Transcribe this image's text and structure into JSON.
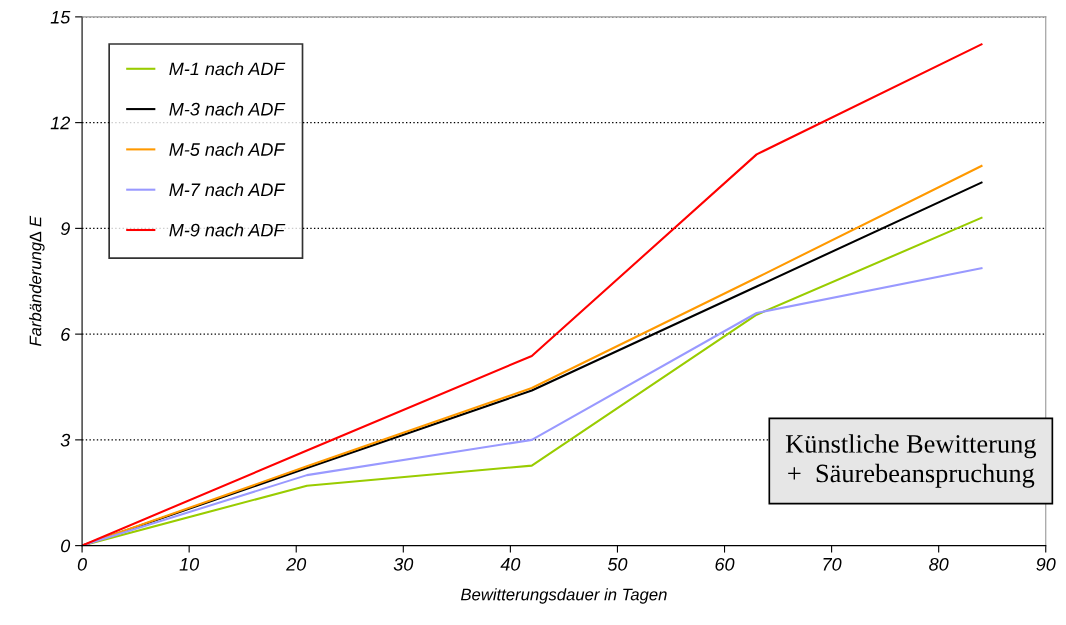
{
  "chart_data": {
    "type": "line",
    "xlabel": "Bewitterungsdauer in Tagen",
    "ylabel": "Farbänderung∆ E",
    "x": [
      0,
      21,
      42,
      63,
      84
    ],
    "series": [
      {
        "name": "M-1 nach ADF",
        "color": "#99cc00",
        "values": [
          0,
          1.7,
          2.27,
          6.55,
          9.3
        ]
      },
      {
        "name": "M-3 nach ADF",
        "color": "#000000",
        "values": [
          0,
          2.2,
          4.4,
          7.35,
          10.3
        ]
      },
      {
        "name": "M-5 nach ADF",
        "color": "#ff9900",
        "values": [
          0,
          2.25,
          4.47,
          7.6,
          10.77
        ]
      },
      {
        "name": "M-7 nach ADF",
        "color": "#9999ff",
        "values": [
          0,
          2.0,
          3.0,
          6.6,
          7.87
        ]
      },
      {
        "name": "M-9 nach ADF",
        "color": "#ff0000",
        "values": [
          0,
          2.7,
          5.38,
          11.1,
          14.22
        ]
      }
    ],
    "xlim": [
      0,
      90
    ],
    "xticks": [
      0,
      10,
      20,
      30,
      40,
      50,
      60,
      70,
      80,
      90
    ],
    "ylim": [
      0,
      15
    ],
    "yticks": [
      0,
      3,
      6,
      9,
      12,
      15
    ],
    "grid": "y",
    "legend": "top left",
    "marker": "none",
    "line_style": "solid",
    "annotations": [
      "Künstliche Bewitterung\n+  Säurebeanspruchung"
    ]
  }
}
